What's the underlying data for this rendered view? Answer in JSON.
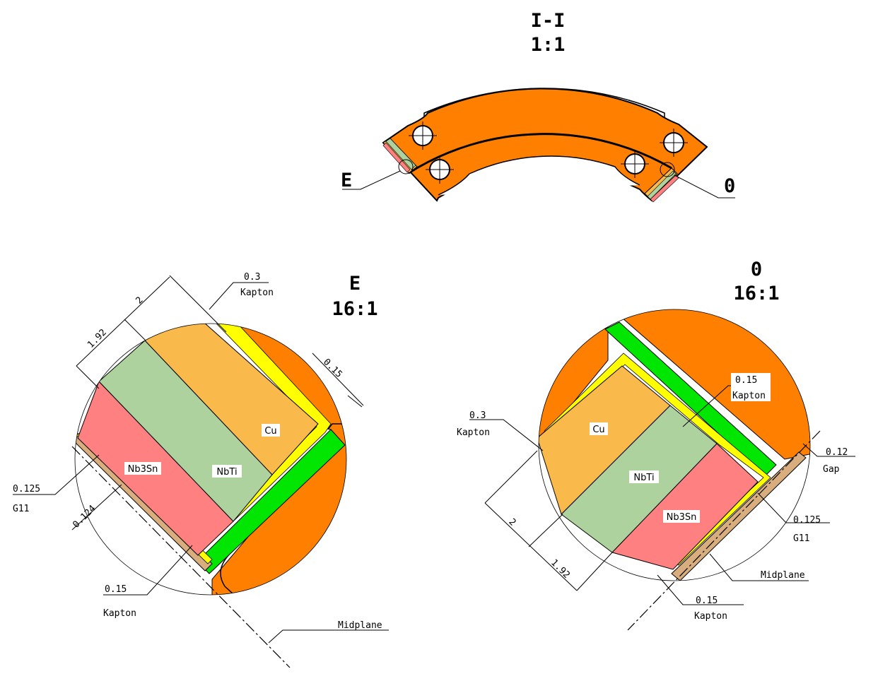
{
  "section_view": {
    "name": "I-I",
    "scale": "1:1",
    "callout_left": "E",
    "callout_right": "0"
  },
  "detail_e": {
    "name": "E",
    "scale": "16:1",
    "materials": {
      "cu": "Cu",
      "nbti": "NbTi",
      "nb3sn": "Nb3Sn"
    },
    "dims": {
      "kapton_top_value": "0.3",
      "kapton_top_label": "Kapton",
      "gap_value": "0.15",
      "d2": "2",
      "d192": "1.92",
      "g11_value": "0.125",
      "g11_label": "G11",
      "d124": "0.124",
      "kapton_bottom_value": "0.15",
      "kapton_bottom_label": "Kapton",
      "midplane": "Midplane"
    }
  },
  "detail_o": {
    "name": "0",
    "scale": "16:1",
    "materials": {
      "cu": "Cu",
      "nbti": "NbTi",
      "nb3sn": "Nb3Sn"
    },
    "dims": {
      "kapton_inner_value": "0.15",
      "kapton_inner_label": "Kapton",
      "kapton_left_value": "0.3",
      "kapton_left_label": "Kapton",
      "gap_value": "0.12",
      "gap_label": "Gap",
      "g11_value": "0.125",
      "g11_label": "G11",
      "d2": "2",
      "d192": "1.92",
      "midplane": "Midplane",
      "kapton_bottom_value": "0.15",
      "kapton_bottom_label": "Kapton"
    }
  },
  "colors": {
    "steel_orange": "#FF8000",
    "cu": "#F9B94B",
    "nbti": "#AED29E",
    "nb3sn": "#FF8080",
    "kapton_yellow": "#FFFF00",
    "g11_tan": "#D8AE7E",
    "green_shim": "#00E600"
  }
}
